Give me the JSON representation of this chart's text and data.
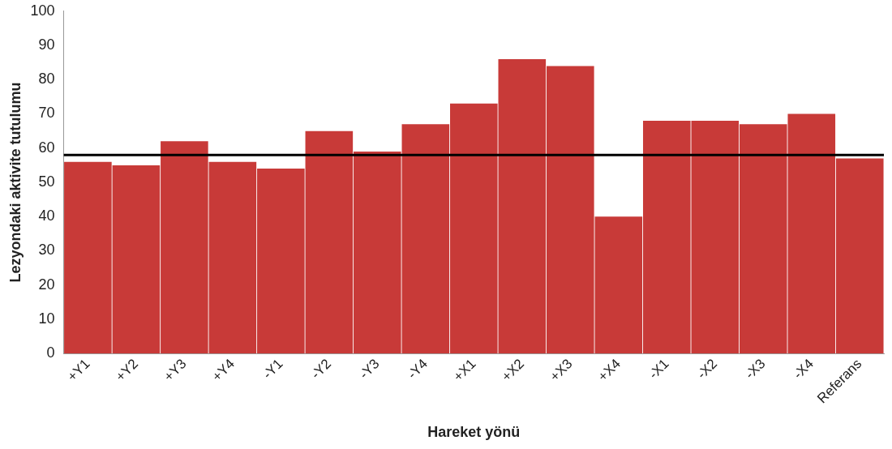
{
  "chart_data": {
    "type": "bar",
    "xlabel": "Hareket yönü",
    "ylabel": "Lezyondaki aktivite tutulumu",
    "categories": [
      "+Y1",
      "+Y2",
      "+Y3",
      "+Y4",
      "-Y1",
      "-Y2",
      "-Y3",
      "-Y4",
      "+X1",
      "+X2",
      "+X3",
      "+X4",
      "-X1",
      "-X2",
      "-X3",
      "-X4",
      "Referans"
    ],
    "values": [
      56,
      55,
      62,
      56,
      54,
      65,
      59,
      67,
      73,
      86,
      84,
      40,
      68,
      68,
      67,
      70,
      57
    ],
    "color": "#c83a38",
    "ylim": [
      0,
      100
    ],
    "yticks": [
      0,
      10,
      20,
      30,
      40,
      50,
      60,
      70,
      80,
      90,
      100
    ],
    "grid": false,
    "legend": false,
    "ref_lines": [
      {
        "axis": "y",
        "value": 58,
        "color": "#000000"
      }
    ]
  }
}
